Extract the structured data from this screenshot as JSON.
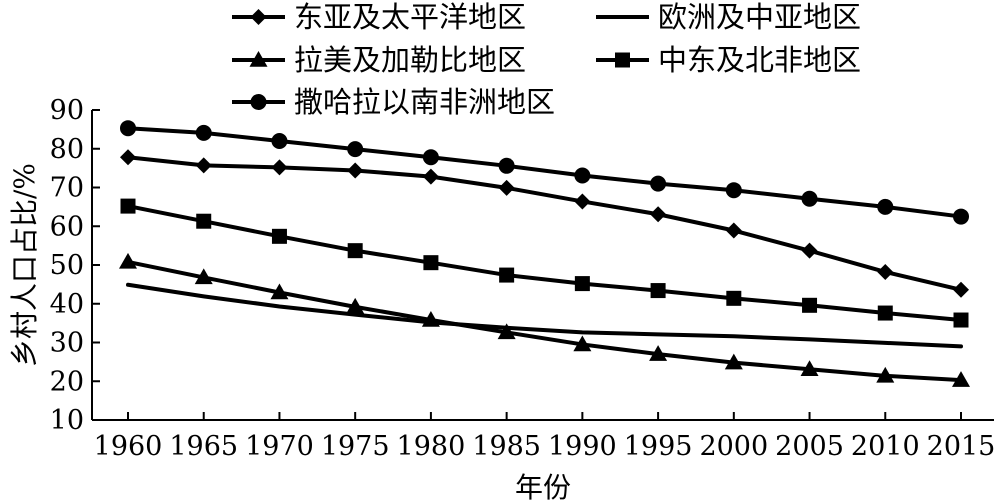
{
  "chart_data": {
    "type": "line",
    "title": "",
    "xlabel": "年份",
    "ylabel": "乡村人口占比/%",
    "ylim": [
      10,
      90
    ],
    "yticks": [
      10,
      20,
      30,
      40,
      50,
      60,
      70,
      80,
      90
    ],
    "grid": false,
    "legend_position": "top",
    "x": [
      1960,
      1965,
      1970,
      1975,
      1980,
      1985,
      1990,
      1995,
      2000,
      2005,
      2010,
      2015
    ],
    "series": [
      {
        "name": "东亚及太平洋地区",
        "marker": "diamond",
        "values": [
          77.8,
          75.7,
          75.2,
          74.4,
          72.8,
          69.9,
          66.4,
          63.1,
          58.9,
          53.7,
          48.2,
          43.6
        ]
      },
      {
        "name": "欧洲及中亚地区",
        "marker": "none",
        "values": [
          44.9,
          41.9,
          39.3,
          37.2,
          35.2,
          33.8,
          32.6,
          32.1,
          31.6,
          30.8,
          29.9,
          29.0
        ]
      },
      {
        "name": "拉美及加勒比地区",
        "marker": "triangle",
        "values": [
          50.8,
          46.8,
          42.9,
          39.2,
          35.8,
          32.6,
          29.5,
          27.0,
          24.8,
          23.1,
          21.4,
          20.3
        ]
      },
      {
        "name": "中东及北非地区",
        "marker": "square",
        "values": [
          65.2,
          61.3,
          57.4,
          53.7,
          50.6,
          47.4,
          45.2,
          43.4,
          41.4,
          39.6,
          37.6,
          35.8
        ]
      },
      {
        "name": "撒哈拉以南非洲地区",
        "marker": "circle",
        "values": [
          85.3,
          84.1,
          82.0,
          79.9,
          77.8,
          75.6,
          73.1,
          71.0,
          69.3,
          67.1,
          65.0,
          62.5
        ]
      }
    ]
  }
}
